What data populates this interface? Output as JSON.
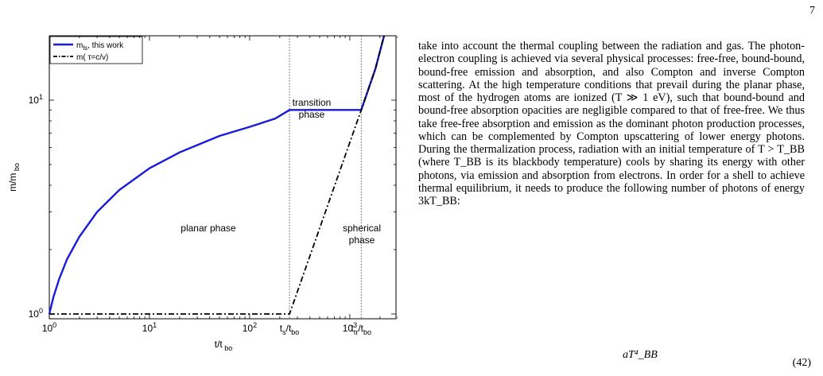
{
  "page": {
    "number": "7",
    "paragraph": "take into account the thermal coupling between the radiation and gas. The photon-electron coupling is achieved via several physical processes: free-free, bound-bound, bound-free emission and absorption, and also Compton and inverse Compton scattering. At the high temperature conditions that prevail during the planar phase, most of the hydrogen atoms are ionized (T ≫ 1 eV), such that bound-bound and bound-free absorption opacities are negligible compared to that of free-free. We thus take free-free absorption and emission as the dominant photon production processes, which can be complemented by Compton upscattering of lower energy photons. During the thermalization process, radiation with an initial temperature of T > T_BB (where T_BB is its blackbody temperature) cools by sharing its energy with other photons, via emission and absorption from electrons. In order for a shell to achieve thermal equilibrium, it needs to produce the following number of photons of energy 3kT_BB:",
    "equation_visible_fragment": "aT⁴_BB",
    "equation_number": "(42)"
  },
  "chart_data": {
    "type": "line",
    "xscale": "log",
    "yscale": "log",
    "xlim": [
      1,
      3000
    ],
    "ylim": [
      0.95,
      20
    ],
    "xlabel": "t/t bo",
    "ylabel": "m/m bo",
    "x_tick_labels": [
      "10⁰",
      "10¹",
      "10²",
      "t_s/t_bo",
      "10³",
      "t_tr/t_bo"
    ],
    "y_tick_labels": [
      "10⁰",
      "10¹"
    ],
    "legend": {
      "position": "top-left",
      "entries": [
        "m_ls, this work",
        "m( τ=c/v)"
      ]
    },
    "annotations": [
      "transition phase",
      "planar phase",
      "spherical phase"
    ],
    "vertical_markers": {
      "t_s_over_t_bo": 250,
      "t_tr_over_t_bo": 1300
    },
    "series": [
      {
        "name": "m_ls, this work",
        "color": "#1a1adb",
        "style": "solid",
        "x": [
          1,
          1.1,
          1.25,
          1.5,
          2,
          3,
          5,
          10,
          20,
          50,
          100,
          180,
          250,
          1300,
          1800,
          2200
        ],
        "y": [
          1.0,
          1.2,
          1.45,
          1.8,
          2.3,
          3.0,
          3.8,
          4.8,
          5.7,
          6.8,
          7.5,
          8.2,
          9.0,
          9.0,
          14.0,
          20.0
        ]
      },
      {
        "name": "m( τ=c/v)",
        "color": "#000000",
        "style": "dash-dot",
        "x": [
          1,
          250,
          1300,
          1800,
          2200
        ],
        "y": [
          1.0,
          1.0,
          9.0,
          14.0,
          20.0
        ]
      }
    ]
  }
}
